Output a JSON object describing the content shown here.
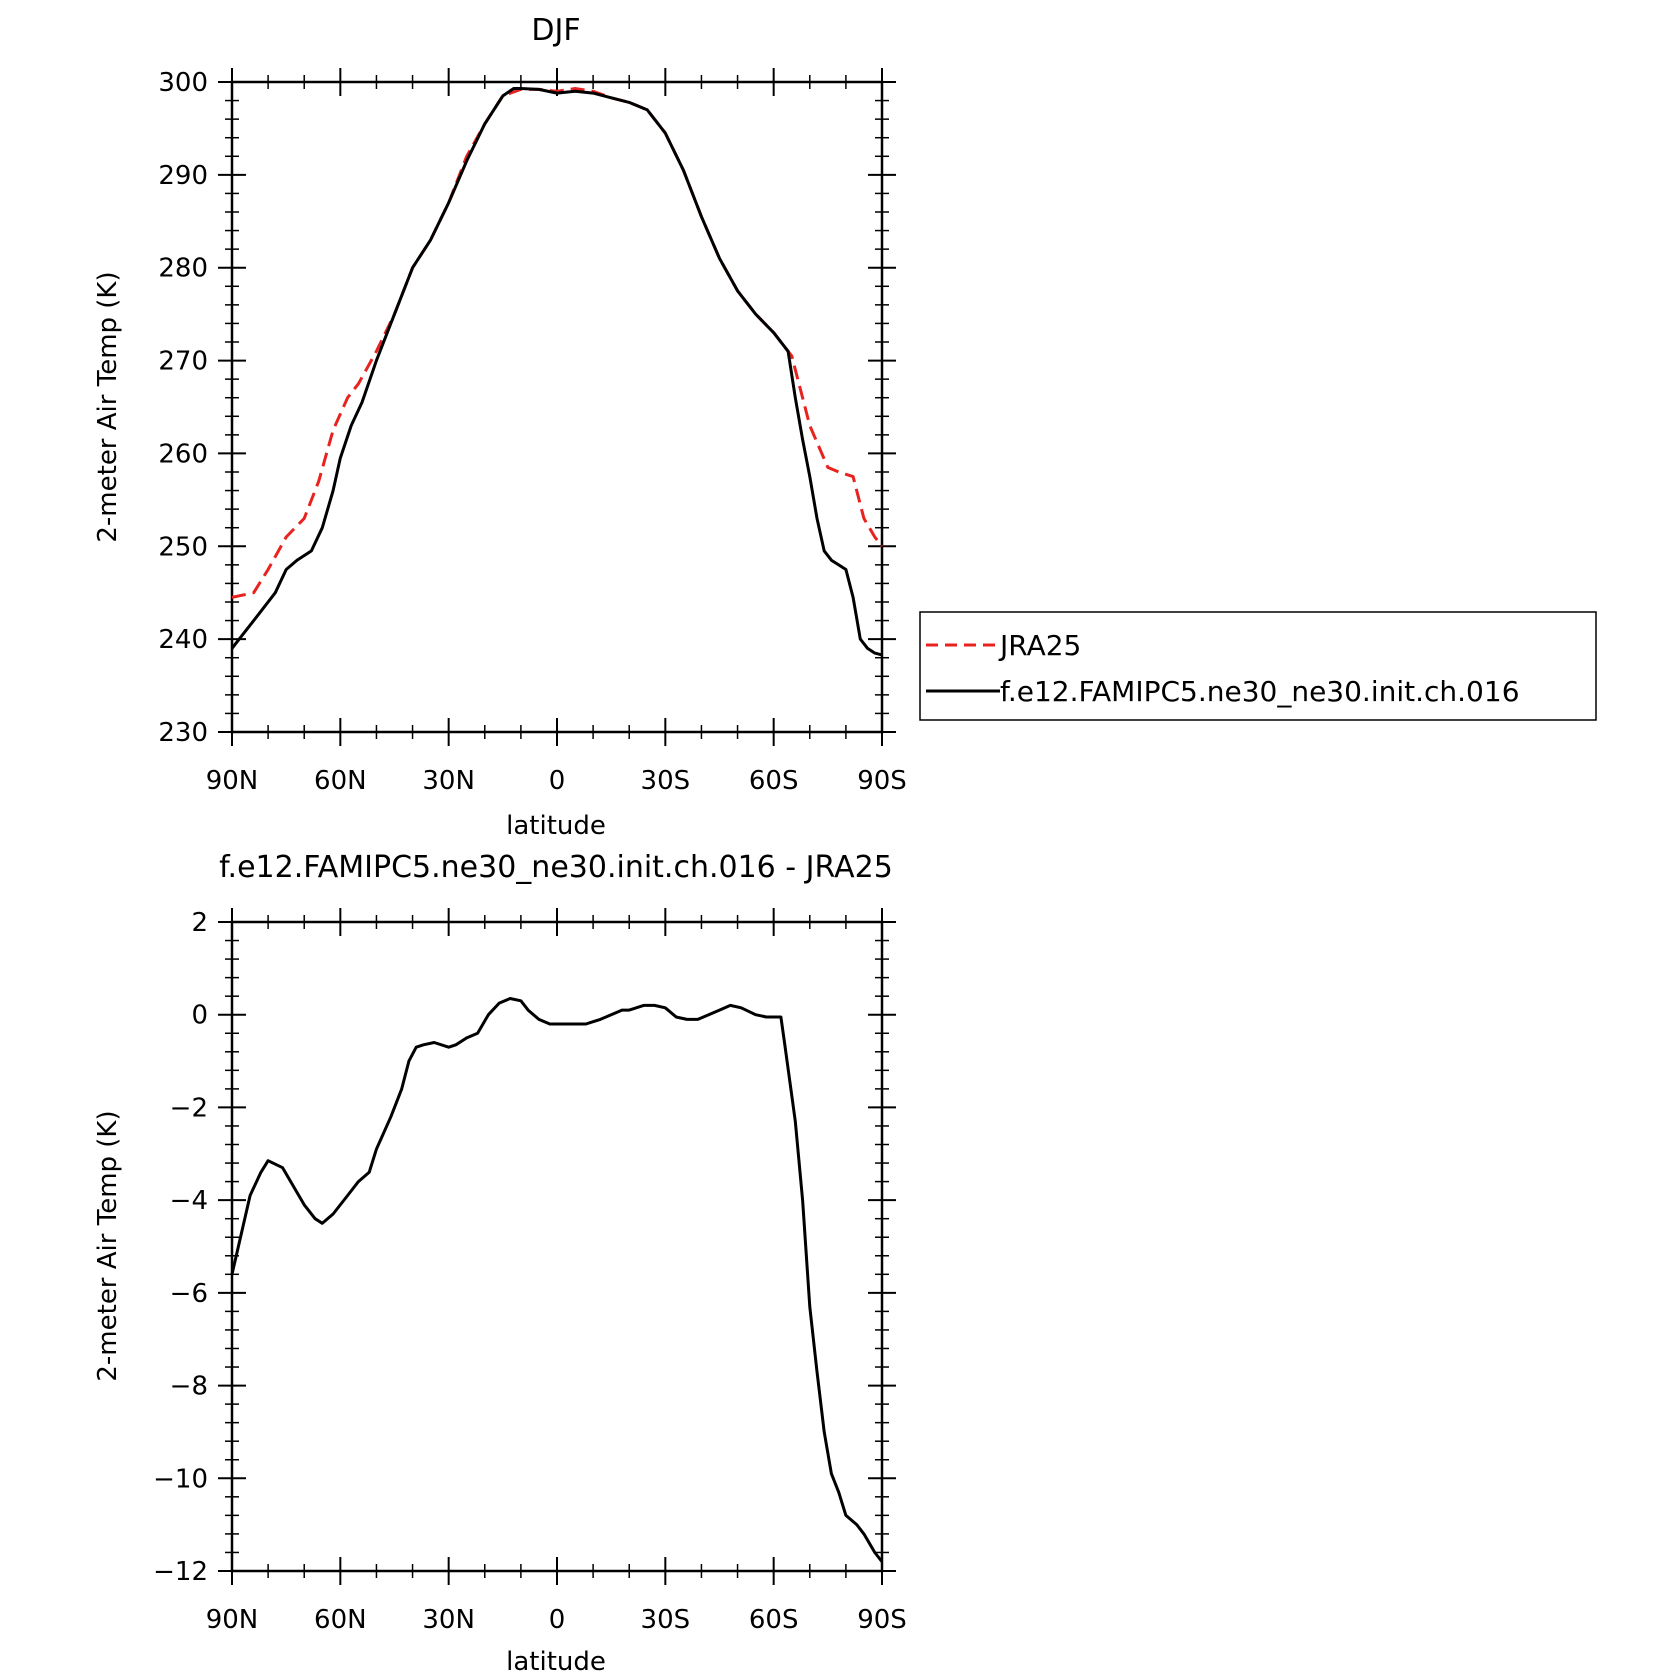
{
  "chart_data": [
    {
      "type": "line",
      "title": "DJF",
      "xlabel": "latitude",
      "ylabel": "2-meter Air Temp (K)",
      "xlim": [
        90,
        -90
      ],
      "ylim": [
        230,
        300
      ],
      "xticks": [
        90,
        60,
        30,
        0,
        -30,
        -60,
        -90
      ],
      "xtick_labels": [
        "90N",
        "60N",
        "30N",
        "0",
        "30S",
        "60S",
        "90S"
      ],
      "yticks": [
        230,
        240,
        250,
        260,
        270,
        280,
        290,
        300
      ],
      "ytick_labels": [
        "230",
        "240",
        "250",
        "260",
        "270",
        "280",
        "290",
        "300"
      ],
      "legend_position": "right",
      "series": [
        {
          "name": "JRA25",
          "color": "#e8231f",
          "dash": "dashed",
          "x": [
            90,
            84,
            80,
            75,
            70,
            66,
            62,
            58,
            55,
            50,
            45,
            40,
            35,
            30,
            25,
            20,
            15,
            10,
            5,
            0,
            -5,
            -10,
            -15,
            -20,
            -25,
            -30,
            -35,
            -40,
            -45,
            -50,
            -55,
            -60,
            -65,
            -68,
            -70,
            -75,
            -78,
            -82,
            -85,
            -88,
            -90
          ],
          "y": [
            244.5,
            245,
            247.5,
            251,
            253,
            257,
            262.5,
            266,
            267.5,
            271,
            275,
            280,
            283,
            287,
            292,
            295.5,
            298.5,
            299.2,
            299.2,
            299,
            299.3,
            299,
            298.3,
            297.8,
            297,
            294.5,
            290.5,
            285.5,
            281,
            277.5,
            275,
            273,
            270.5,
            266,
            263,
            258.5,
            258,
            257.5,
            253,
            251,
            250
          ]
        },
        {
          "name": "f.e12.FAMIPC5.ne30_ne30.init.ch.016",
          "color": "#000000",
          "dash": "solid",
          "x": [
            90,
            88,
            85,
            82,
            78,
            75,
            72,
            68,
            65,
            62,
            60,
            57,
            54,
            50,
            45,
            40,
            35,
            30,
            25,
            20,
            15,
            12,
            10,
            5,
            0,
            -5,
            -10,
            -15,
            -20,
            -25,
            -30,
            -35,
            -40,
            -45,
            -50,
            -55,
            -60,
            -64,
            -66,
            -68,
            -70,
            -72,
            -74,
            -76,
            -78,
            -80,
            -82,
            -84,
            -86,
            -88,
            -90
          ],
          "y": [
            239,
            240,
            241.5,
            243,
            245,
            247.5,
            248.5,
            249.5,
            252,
            256,
            259.5,
            263,
            265.5,
            270,
            275,
            280,
            283,
            287,
            291.5,
            295.5,
            298.5,
            299.3,
            299.3,
            299.2,
            298.8,
            299,
            298.8,
            298.3,
            297.8,
            297,
            294.5,
            290.5,
            285.5,
            281,
            277.5,
            275,
            273,
            271,
            266,
            261.5,
            257.5,
            253,
            249.5,
            248.5,
            248,
            247.5,
            244.5,
            240,
            239,
            238.5,
            238.3
          ]
        }
      ]
    },
    {
      "type": "line",
      "title": "f.e12.FAMIPC5.ne30_ne30.init.ch.016 - JRA25",
      "xlabel": "latitude",
      "ylabel": "2-meter Air Temp (K)",
      "xlim": [
        90,
        -90
      ],
      "ylim": [
        -12,
        2
      ],
      "xticks": [
        90,
        60,
        30,
        0,
        -30,
        -60,
        -90
      ],
      "xtick_labels": [
        "90N",
        "60N",
        "30N",
        "0",
        "30S",
        "60S",
        "90S"
      ],
      "yticks": [
        -12,
        -10,
        -8,
        -6,
        -4,
        -2,
        0,
        2
      ],
      "ytick_labels": [
        "−12",
        "−10",
        "−8",
        "−6",
        "−4",
        "−2",
        "0",
        "2"
      ],
      "series": [
        {
          "name": "",
          "color": "#000000",
          "dash": "solid",
          "x": [
            90,
            85,
            82,
            80,
            76,
            73,
            70,
            67,
            65,
            62,
            58,
            55,
            52,
            50,
            46,
            43,
            41,
            39,
            37,
            34,
            30,
            28,
            25,
            22,
            19,
            16,
            13,
            10,
            8,
            5,
            2,
            0,
            -2,
            -5,
            -8,
            -10,
            -12,
            -15,
            -18,
            -20,
            -24,
            -27,
            -30,
            -33,
            -36,
            -39,
            -42,
            -45,
            -48,
            -51,
            -55,
            -58,
            -62,
            -63,
            -66,
            -68,
            -70,
            -72,
            -74,
            -76,
            -78,
            -80,
            -83,
            -85,
            -88,
            -90
          ],
          "y": [
            -5.6,
            -3.9,
            -3.4,
            -3.15,
            -3.3,
            -3.7,
            -4.1,
            -4.4,
            -4.5,
            -4.3,
            -3.9,
            -3.6,
            -3.4,
            -2.9,
            -2.2,
            -1.6,
            -1.0,
            -0.7,
            -0.65,
            -0.6,
            -0.7,
            -0.65,
            -0.5,
            -0.4,
            0,
            0.25,
            0.35,
            0.3,
            0.1,
            -0.1,
            -0.2,
            -0.2,
            -0.2,
            -0.2,
            -0.2,
            -0.15,
            -0.1,
            0,
            0.1,
            0.1,
            0.2,
            0.2,
            0.15,
            -0.05,
            -0.1,
            -0.1,
            0,
            0.1,
            0.2,
            0.15,
            0,
            -0.05,
            -0.05,
            -0.6,
            -2.3,
            -4.0,
            -6.3,
            -7.7,
            -9.0,
            -9.9,
            -10.3,
            -10.8,
            -11.0,
            -11.2,
            -11.6,
            -11.8
          ]
        }
      ]
    }
  ]
}
